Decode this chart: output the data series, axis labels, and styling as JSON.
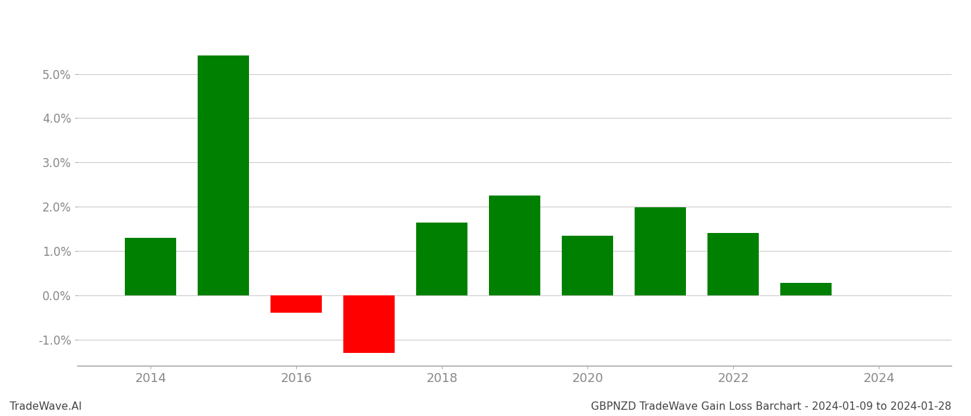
{
  "years": [
    2014,
    2015,
    2016,
    2017,
    2018,
    2019,
    2020,
    2021,
    2022,
    2023
  ],
  "values": [
    1.3,
    5.42,
    -0.4,
    -1.3,
    1.65,
    2.25,
    1.35,
    1.98,
    1.4,
    0.28
  ],
  "bar_colors_positive": "#008000",
  "bar_colors_negative": "#ff0000",
  "title": "GBPNZD TradeWave Gain Loss Barchart - 2024-01-09 to 2024-01-28",
  "watermark": "TradeWave.AI",
  "ylim_min": -1.6,
  "ylim_max": 6.2,
  "yticks": [
    -1.0,
    0.0,
    1.0,
    2.0,
    3.0,
    4.0,
    5.0
  ],
  "xlim_min": 2013.0,
  "xlim_max": 2025.0,
  "xticks": [
    2014,
    2016,
    2018,
    2020,
    2022,
    2024
  ],
  "background_color": "#ffffff",
  "grid_color": "#cccccc",
  "bar_width": 0.7,
  "xlabel_fontsize": 13,
  "ylabel_fontsize": 12,
  "title_fontsize": 11,
  "watermark_fontsize": 11,
  "tick_color": "#888888",
  "spine_color": "#aaaaaa"
}
